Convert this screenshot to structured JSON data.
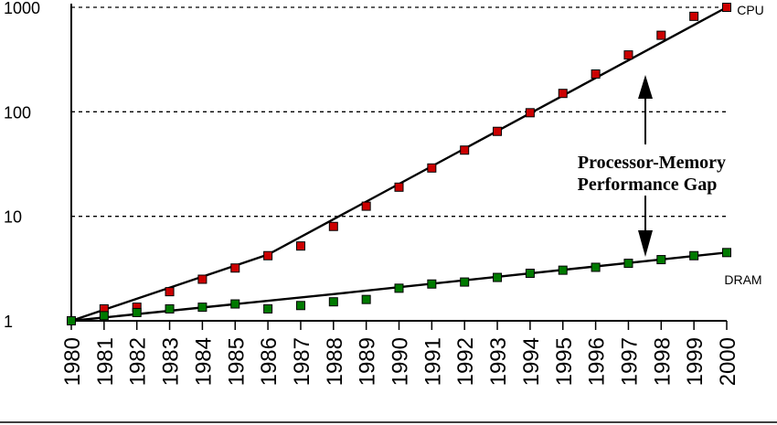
{
  "chart_data": {
    "type": "line",
    "title": "",
    "xlabel": "",
    "ylabel": "",
    "yscale": "log",
    "ylim": [
      1,
      1000
    ],
    "yticks": [
      1,
      10,
      100,
      1000
    ],
    "ytick_labels": [
      "1",
      "10",
      "100",
      "1000"
    ],
    "gridlines": "dashed horizontal at 10, 100, 1000",
    "x": [
      "1980",
      "1981",
      "1982",
      "1983",
      "1984",
      "1985",
      "1986",
      "1987",
      "1988",
      "1989",
      "1990",
      "1991",
      "1992",
      "1993",
      "1994",
      "1995",
      "1996",
      "1997",
      "1998",
      "1999",
      "2000"
    ],
    "series": [
      {
        "name": "CPU",
        "color": "#cc0000",
        "values": [
          1,
          1.3,
          1.35,
          1.9,
          2.5,
          3.2,
          4.2,
          5.2,
          8,
          12.5,
          19,
          29,
          43,
          65,
          98,
          150,
          230,
          350,
          540,
          820,
          1000
        ],
        "trend": [
          [
            1980,
            1
          ],
          [
            1986,
            4.3
          ],
          [
            2000,
            1000
          ]
        ]
      },
      {
        "name": "DRAM",
        "color": "#007a00",
        "values": [
          1,
          1.12,
          1.2,
          1.3,
          1.35,
          1.45,
          1.3,
          1.4,
          1.52,
          1.6,
          2.05,
          2.25,
          2.35,
          2.6,
          2.85,
          3.05,
          3.25,
          3.55,
          3.85,
          4.2,
          4.5
        ],
        "trend": [
          [
            1980,
            1
          ],
          [
            1988,
            1.8
          ],
          [
            2000,
            4.5
          ]
        ]
      }
    ],
    "annotation": {
      "line1": "Processor-Memory",
      "line2": "Performance Gap"
    }
  }
}
